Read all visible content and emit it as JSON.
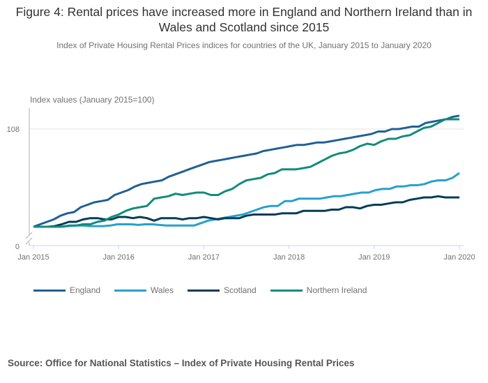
{
  "title": "Figure 4: Rental prices have increased more in England and Northern Ireland than in Wales and Scotland since 2015",
  "subtitle": "Index of Private Housing Rental Prices indices for countries of the UK, January 2015 to January 2020",
  "source": "Source: Office for National Statistics – Index of Private Housing Rental Prices",
  "chart_data": {
    "type": "line",
    "title": "Figure 4: Rental prices have increased more in England and Northern Ireland than in Wales and Scotland since 2015",
    "ylabel": "Index values (January 2015=100)",
    "xlabel": "",
    "ylim": [
      100,
      109.5
    ],
    "y_axis_break": true,
    "yticks": [
      0,
      108
    ],
    "ytick_labels": [
      "0",
      "108"
    ],
    "x_tick_labels": [
      "Jan 2015",
      "Jan 2016",
      "Jan 2017",
      "Jan 2018",
      "Jan 2019",
      "Jan 2020"
    ],
    "x_start": "Jan 2015",
    "x_end": "Jan 2020",
    "grid": "horizontal at 108",
    "legend_position": "bottom",
    "series": [
      {
        "name": "England",
        "color": "#206095",
        "values": [
          100.0,
          100.2,
          100.4,
          100.6,
          100.9,
          101.1,
          101.2,
          101.6,
          101.8,
          102.0,
          102.1,
          102.2,
          102.6,
          102.8,
          103.0,
          103.3,
          103.5,
          103.6,
          103.7,
          103.8,
          104.1,
          104.3,
          104.5,
          104.7,
          104.9,
          105.1,
          105.3,
          105.4,
          105.5,
          105.6,
          105.7,
          105.8,
          105.9,
          106.0,
          106.2,
          106.3,
          106.4,
          106.5,
          106.6,
          106.7,
          106.7,
          106.8,
          106.9,
          106.9,
          107.0,
          107.1,
          107.2,
          107.3,
          107.4,
          107.5,
          107.6,
          107.8,
          107.8,
          108.0,
          108.0,
          108.1,
          108.2,
          108.2,
          108.5,
          108.6,
          108.7,
          108.8,
          109.0,
          109.1
        ]
      },
      {
        "name": "Wales",
        "color": "#27a0cc",
        "values": [
          100.0,
          100.0,
          100.0,
          100.0,
          100.0,
          100.05,
          100.1,
          100.1,
          100.05,
          100.05,
          100.05,
          100.1,
          100.2,
          100.2,
          100.2,
          100.15,
          100.2,
          100.2,
          100.15,
          100.1,
          100.1,
          100.1,
          100.1,
          100.1,
          100.3,
          100.5,
          100.6,
          100.7,
          100.8,
          100.9,
          101.0,
          101.2,
          101.4,
          101.6,
          101.7,
          101.7,
          102.1,
          102.1,
          102.3,
          102.3,
          102.3,
          102.3,
          102.4,
          102.5,
          102.5,
          102.6,
          102.7,
          102.8,
          102.8,
          103.0,
          103.1,
          103.1,
          103.3,
          103.3,
          103.4,
          103.4,
          103.5,
          103.7,
          103.8,
          103.8,
          104.0,
          104.4
        ]
      },
      {
        "name": "Scotland",
        "color": "#003c57",
        "values": [
          100.0,
          100.0,
          100.0,
          100.05,
          100.2,
          100.4,
          100.4,
          100.6,
          100.7,
          100.7,
          100.6,
          100.6,
          100.8,
          100.8,
          100.7,
          100.8,
          100.7,
          100.5,
          100.7,
          100.7,
          100.7,
          100.6,
          100.7,
          100.7,
          100.8,
          100.7,
          100.6,
          100.7,
          100.7,
          100.7,
          100.9,
          101.0,
          101.0,
          101.0,
          101.0,
          101.1,
          101.1,
          101.1,
          101.3,
          101.3,
          101.3,
          101.3,
          101.4,
          101.4,
          101.6,
          101.6,
          101.5,
          101.7,
          101.8,
          101.8,
          101.9,
          102.0,
          102.0,
          102.2,
          102.3,
          102.4,
          102.4,
          102.5,
          102.4,
          102.4,
          102.4
        ]
      },
      {
        "name": "Northern Ireland",
        "color": "#118c7b",
        "values": [
          100.0,
          100.0,
          100.0,
          100.0,
          100.0,
          100.1,
          100.1,
          100.2,
          100.2,
          100.4,
          100.5,
          100.8,
          101.0,
          101.3,
          101.5,
          101.6,
          101.7,
          102.3,
          102.4,
          102.5,
          102.7,
          102.6,
          102.7,
          102.8,
          102.8,
          102.6,
          102.6,
          102.9,
          103.1,
          103.5,
          103.8,
          103.9,
          104.0,
          104.3,
          104.4,
          104.7,
          104.7,
          104.7,
          104.8,
          104.9,
          105.2,
          105.5,
          105.8,
          106.0,
          106.1,
          106.3,
          106.6,
          106.8,
          106.7,
          107.0,
          107.2,
          107.2,
          107.4,
          107.5,
          107.8,
          108.1,
          108.2,
          108.5,
          108.8,
          108.8,
          108.8
        ]
      }
    ]
  },
  "legend": [
    {
      "label": "England",
      "color": "#206095"
    },
    {
      "label": "Wales",
      "color": "#27a0cc"
    },
    {
      "label": "Scotland",
      "color": "#003c57"
    },
    {
      "label": "Northern Ireland",
      "color": "#118c7b"
    }
  ]
}
